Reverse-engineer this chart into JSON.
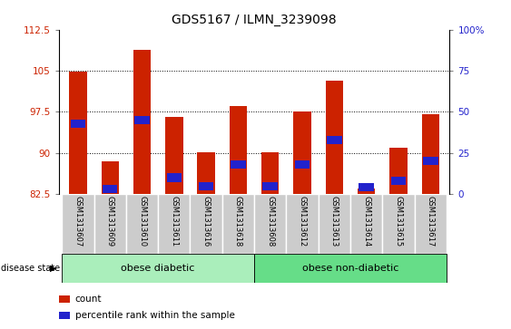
{
  "title": "GDS5167 / ILMN_3239098",
  "samples": [
    "GSM1313607",
    "GSM1313609",
    "GSM1313610",
    "GSM1313611",
    "GSM1313616",
    "GSM1313618",
    "GSM1313608",
    "GSM1313612",
    "GSM1313613",
    "GSM1313614",
    "GSM1313615",
    "GSM1313617"
  ],
  "counts": [
    104.8,
    88.5,
    108.8,
    96.5,
    90.2,
    98.5,
    90.2,
    97.5,
    103.2,
    83.5,
    91.0,
    97.0
  ],
  "percentiles": [
    43,
    3,
    45,
    10,
    5,
    18,
    5,
    18,
    33,
    4,
    8,
    20
  ],
  "ymin": 82.5,
  "ymax": 112.5,
  "yticks": [
    82.5,
    90,
    97.5,
    105,
    112.5
  ],
  "ytick_labels": [
    "82.5",
    "90",
    "97.5",
    "105",
    "112.5"
  ],
  "right_yticks": [
    0,
    25,
    50,
    75,
    100
  ],
  "right_ytick_labels": [
    "0",
    "25",
    "50",
    "75",
    "100%"
  ],
  "gridlines": [
    90,
    97.5,
    105
  ],
  "groups": [
    {
      "label": "obese diabetic",
      "start": 0,
      "end": 5,
      "color": "#aaeebb"
    },
    {
      "label": "obese non-diabetic",
      "start": 6,
      "end": 11,
      "color": "#66dd88"
    }
  ],
  "bar_color": "#cc2200",
  "percentile_color": "#2222cc",
  "bg_xtick": "#cccccc",
  "title_fontsize": 10,
  "tick_fontsize": 7.5,
  "sample_fontsize": 6,
  "group_fontsize": 8,
  "legend_fontsize": 7.5
}
